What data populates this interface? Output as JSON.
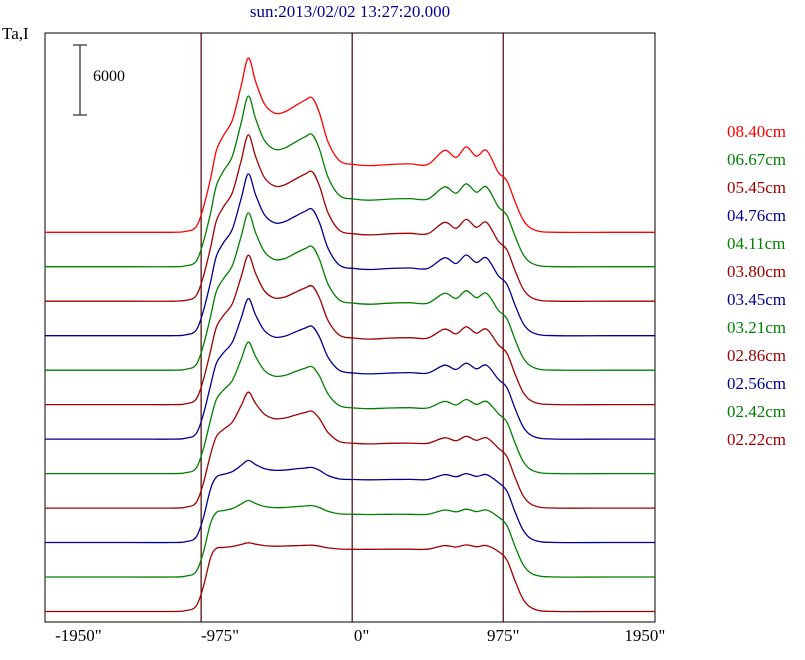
{
  "header": {
    "title": "sun:2013/02/02 13:27:20.000"
  },
  "colors": {
    "title": "#000099",
    "frame": "#000000",
    "vline": "#4a0000",
    "axis_text": "#000000",
    "background": "#ffffff"
  },
  "chart_data": {
    "type": "line",
    "title": "sun:2013/02/02 13:27:20.000",
    "ylabel": "Ta,I",
    "x_unit": "arcsec",
    "legend_position": "right",
    "grid": false,
    "xlim": [
      -2180,
      2020
    ],
    "ylim": [
      -900,
      49500
    ],
    "x_ticks": [
      {
        "value": -1950,
        "label": "-1950\""
      },
      {
        "value": -975,
        "label": "-975\""
      },
      {
        "value": 0,
        "label": "0\""
      },
      {
        "value": 975,
        "label": "975\""
      },
      {
        "value": 1950,
        "label": "1950\""
      }
    ],
    "vertical_lines": [
      -1105,
      -65,
      975
    ],
    "amplitude_scalebar": {
      "label": "6000",
      "value": 6000
    },
    "stack_offset_step": 2950,
    "x": [
      -2180,
      -1600,
      -1300,
      -1210,
      -1140,
      -1090,
      -1040,
      -1000,
      -950,
      -890,
      -830,
      -780,
      -730,
      -670,
      -600,
      -530,
      -460,
      -390,
      -340,
      -290,
      -230,
      -150,
      -50,
      60,
      190,
      330,
      455,
      570,
      650,
      720,
      790,
      860,
      940,
      1000,
      1060,
      1120,
      1200,
      1350,
      1700,
      2020
    ],
    "series": [
      {
        "name": "08.40cm",
        "color": "#ff0000",
        "offset": 32450,
        "values": [
          0,
          0,
          0,
          80,
          450,
          2100,
          4600,
          7000,
          8300,
          9600,
          12500,
          14900,
          12900,
          11000,
          10200,
          10300,
          10800,
          11300,
          11500,
          10200,
          7700,
          6100,
          5800,
          5700,
          5800,
          5850,
          5800,
          7000,
          6400,
          7300,
          6500,
          7000,
          5150,
          4400,
          2500,
          900,
          150,
          0,
          0,
          0
        ]
      },
      {
        "name": "06.67cm",
        "color": "#008000",
        "offset": 29500,
        "values": [
          0,
          0,
          0,
          80,
          450,
          2100,
          4600,
          6950,
          8210,
          9470,
          12280,
          14610,
          12670,
          10830,
          10050,
          10150,
          10640,
          11120,
          11310,
          10050,
          7630,
          6080,
          5790,
          5690,
          5790,
          5830,
          5790,
          6830,
          6290,
          7100,
          6380,
          6830,
          5150,
          4400,
          2500,
          900,
          150,
          0,
          0,
          0
        ]
      },
      {
        "name": "05.45cm",
        "color": "#a00000",
        "offset": 26550,
        "values": [
          0,
          0,
          0,
          80,
          450,
          2100,
          4600,
          6880,
          8090,
          9300,
          12000,
          14230,
          12370,
          10600,
          9860,
          9950,
          10420,
          10880,
          11070,
          9860,
          7530,
          6040,
          5770,
          5670,
          5770,
          5810,
          5770,
          6750,
          6240,
          7000,
          6320,
          6750,
          5150,
          4400,
          2500,
          900,
          150,
          0,
          0,
          0
        ]
      },
      {
        "name": "04.76cm",
        "color": "#000090",
        "offset": 23600,
        "values": [
          0,
          0,
          0,
          80,
          450,
          2100,
          4600,
          6810,
          7970,
          9130,
          11710,
          13840,
          12060,
          10370,
          9660,
          9750,
          10200,
          10640,
          10820,
          9660,
          7440,
          6010,
          5750,
          5660,
          5750,
          5790,
          5750,
          6660,
          6180,
          6900,
          6260,
          6660,
          5150,
          4400,
          2500,
          900,
          150,
          0,
          0,
          0
        ]
      },
      {
        "name": "04.11cm",
        "color": "#008000",
        "offset": 20650,
        "values": [
          0,
          0,
          0,
          80,
          450,
          2100,
          4600,
          6750,
          7850,
          8960,
          11420,
          13460,
          11760,
          10150,
          9470,
          9550,
          9980,
          10400,
          10570,
          9470,
          7340,
          5980,
          5730,
          5640,
          5730,
          5770,
          5730,
          6580,
          6130,
          6800,
          6200,
          6580,
          5150,
          4400,
          2500,
          900,
          150,
          0,
          0,
          0
        ]
      },
      {
        "name": "03.80cm",
        "color": "#a00000",
        "offset": 17700,
        "values": [
          0,
          0,
          0,
          80,
          450,
          2100,
          4600,
          6630,
          7640,
          8650,
          10920,
          12790,
          11230,
          9750,
          9120,
          9200,
          9590,
          9980,
          10140,
          9120,
          7170,
          5920,
          5690,
          5610,
          5690,
          5730,
          5690,
          6460,
          6050,
          6660,
          6120,
          6460,
          5150,
          4400,
          2500,
          900,
          150,
          0,
          0,
          0
        ]
      },
      {
        "name": "03.45cm",
        "color": "#000090",
        "offset": 14750,
        "values": [
          0,
          0,
          0,
          80,
          450,
          2100,
          4600,
          6490,
          7400,
          8310,
          10340,
          12020,
          10620,
          9290,
          8730,
          8800,
          9150,
          9500,
          9640,
          8730,
          6980,
          5860,
          5650,
          5580,
          5650,
          5690,
          5650,
          6320,
          5960,
          6500,
          6020,
          6320,
          5150,
          4400,
          2500,
          900,
          150,
          0,
          0,
          0
        ]
      },
      {
        "name": "03.21cm",
        "color": "#008000",
        "offset": 11800,
        "values": [
          0,
          0,
          0,
          80,
          450,
          2100,
          4600,
          6350,
          7160,
          7970,
          9760,
          11250,
          10010,
          8830,
          8340,
          8400,
          8710,
          9020,
          9140,
          8340,
          6790,
          5800,
          5610,
          5550,
          5610,
          5640,
          5610,
          6180,
          5870,
          6340,
          5920,
          6180,
          5150,
          4400,
          2500,
          900,
          150,
          0,
          0,
          0
        ]
      },
      {
        "name": "02.86cm",
        "color": "#a00000",
        "offset": 8850,
        "values": [
          0,
          0,
          0,
          80,
          450,
          2100,
          4600,
          6120,
          6740,
          7360,
          8760,
          9910,
          8950,
          8040,
          7650,
          7700,
          7940,
          8180,
          8280,
          7650,
          6450,
          5680,
          5540,
          5490,
          5540,
          5560,
          5540,
          6010,
          5760,
          6140,
          5800,
          6010,
          5150,
          4400,
          2500,
          900,
          150,
          0,
          0,
          0
        ]
      },
      {
        "name": "02.56cm",
        "color": "#000090",
        "offset": 5900,
        "values": [
          0,
          0,
          0,
          80,
          450,
          2100,
          4600,
          5610,
          5840,
          6070,
          6600,
          7030,
          6670,
          6330,
          6180,
          6200,
          6290,
          6380,
          6420,
          6180,
          5730,
          5440,
          5390,
          5370,
          5390,
          5400,
          5390,
          5810,
          5630,
          5900,
          5660,
          5810,
          5150,
          4400,
          2500,
          900,
          150,
          0,
          0,
          0
        ]
      },
      {
        "name": "02.42cm",
        "color": "#008000",
        "offset": 2950,
        "values": [
          0,
          0,
          0,
          80,
          450,
          2100,
          4600,
          5520,
          5690,
          5860,
          6240,
          6550,
          6290,
          6040,
          5940,
          5950,
          6020,
          6080,
          6110,
          5940,
          5610,
          5400,
          5370,
          5350,
          5370,
          5370,
          5370,
          5730,
          5580,
          5800,
          5600,
          5730,
          5150,
          4400,
          2500,
          900,
          150,
          0,
          0,
          0
        ]
      },
      {
        "name": "02.22cm",
        "color": "#a00000",
        "offset": 0,
        "values": [
          0,
          0,
          0,
          80,
          450,
          2100,
          4600,
          5400,
          5480,
          5560,
          5730,
          5880,
          5760,
          5640,
          5590,
          5600,
          5630,
          5660,
          5670,
          5590,
          5440,
          5350,
          5320,
          5320,
          5330,
          5330,
          5330,
          5640,
          5520,
          5700,
          5540,
          5640,
          5150,
          4400,
          2500,
          900,
          150,
          0,
          0,
          0
        ]
      }
    ]
  }
}
